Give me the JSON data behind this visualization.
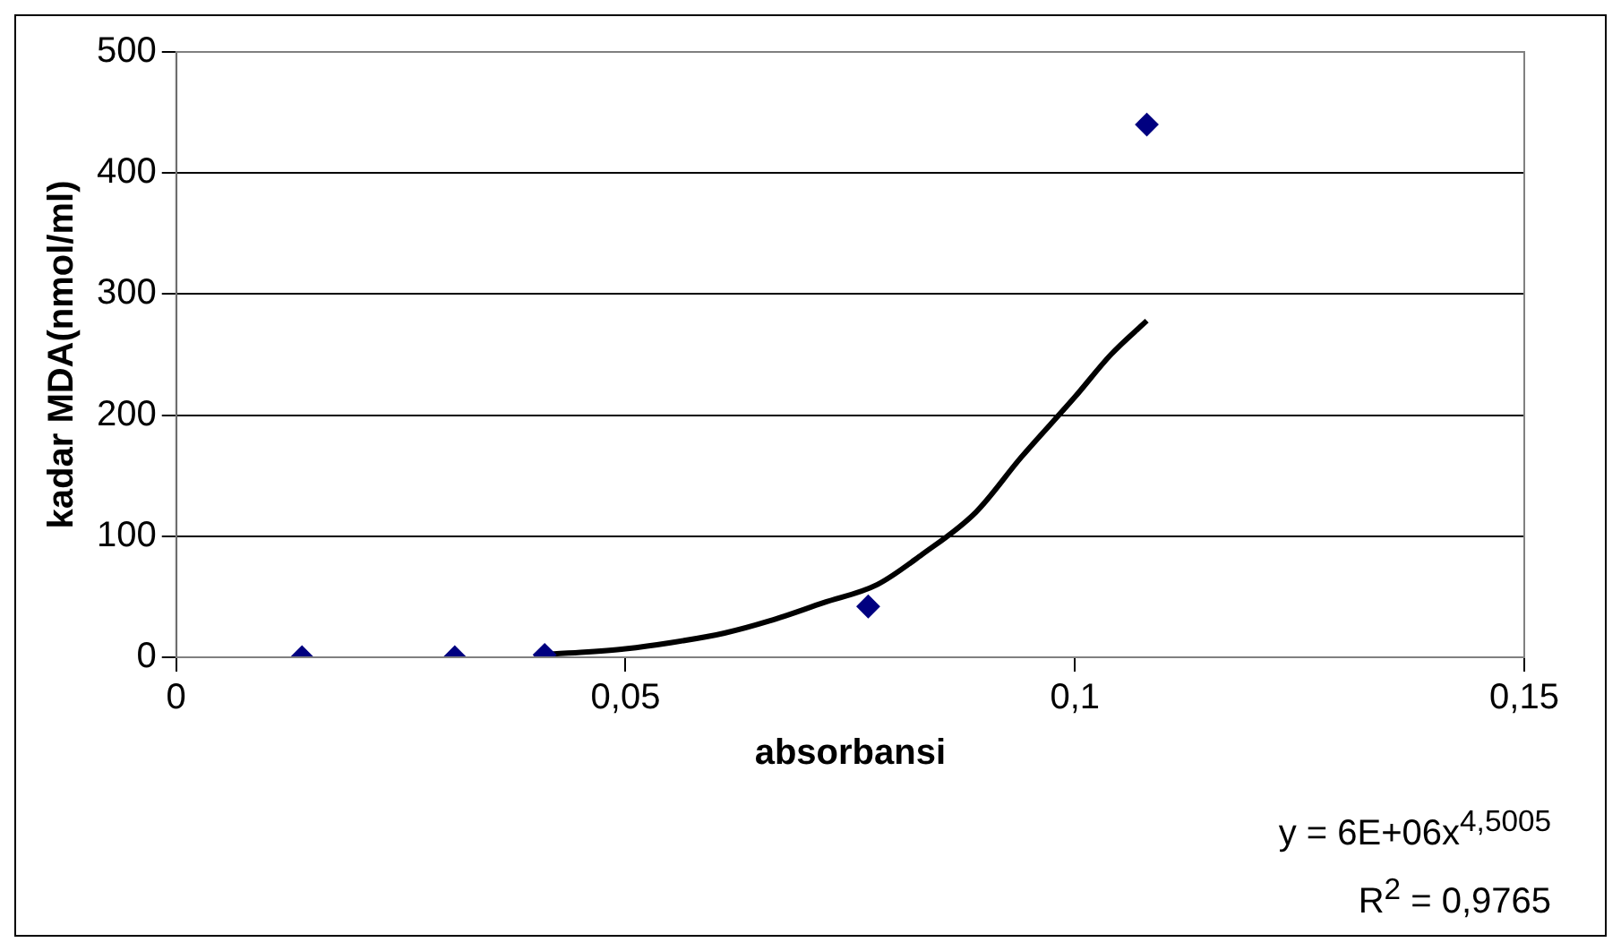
{
  "chart_data": {
    "type": "scatter",
    "xlabel": "absorbansi",
    "ylabel": "kadar MDA(nmol/ml)",
    "series": [
      {
        "type": "scatter",
        "color": "#000080",
        "marker": "diamond",
        "x": [
          0.014,
          0.031,
          0.041,
          0.077,
          0.108
        ],
        "values": [
          0,
          0,
          2,
          42,
          440
        ]
      },
      {
        "type": "line",
        "color": "#000000",
        "marker": "none",
        "x": [
          0.04,
          0.045,
          0.05,
          0.055,
          0.061,
          0.066,
          0.072,
          0.078,
          0.083,
          0.089,
          0.094,
          0.1,
          0.104,
          0.108
        ],
        "values": [
          2,
          4,
          7,
          12,
          20,
          30,
          45,
          60,
          85,
          120,
          165,
          215,
          250,
          278
        ]
      }
    ],
    "xlim": [
      0,
      0.15
    ],
    "xticks": [
      0,
      {
        "value": 0.05,
        "label": "0,05"
      },
      {
        "value": 0.1,
        "label": "0,1"
      },
      {
        "value": 0.15,
        "label": "0,15"
      }
    ],
    "ylim": [
      0,
      500
    ],
    "yticks": [
      0,
      100,
      200,
      300,
      400,
      500
    ],
    "grid": "y",
    "legend": false,
    "line_style": "solid",
    "annotations": [
      "y = 6E+06x$^{4,5005}$",
      "R$^{2}$ = 0,9765"
    ]
  }
}
